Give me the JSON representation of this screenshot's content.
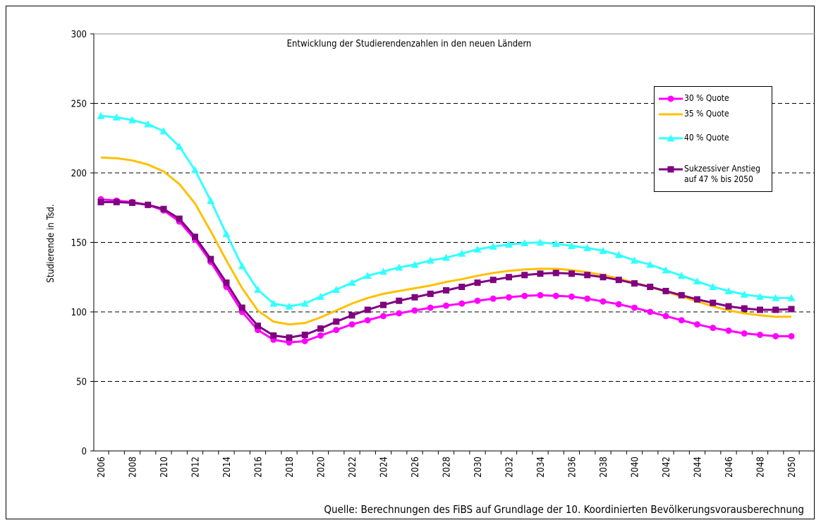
{
  "chart_data": {
    "type": "line",
    "title": "Entwicklung der Studierendenzahlen in den neuen Ländern",
    "y_label": "Studierende in Tsd.",
    "source": "Quelle: Berechnungen des FiBS auf Grundlage der 10. Koordinierten Bevölkerungsvorausberechnung",
    "categories": [
      "2006",
      null,
      "2008",
      null,
      "2010",
      null,
      "2012",
      null,
      "2014",
      null,
      "2016",
      null,
      "2018",
      null,
      "2020",
      null,
      "2022",
      null,
      "2024",
      null,
      "2026",
      null,
      "2028",
      null,
      "2030",
      null,
      "2032",
      null,
      "2034",
      null,
      "2036",
      null,
      "2038",
      null,
      "2040",
      null,
      "2042",
      null,
      "2044",
      null,
      "2046",
      null,
      "2048",
      null,
      "2050"
    ],
    "ylim": [
      0,
      300
    ],
    "yticks": [
      0,
      50,
      100,
      150,
      200,
      250,
      300
    ],
    "grid": true,
    "series": [
      {
        "name": "30 % Quote",
        "color": "#ff00ff",
        "marker": "circle",
        "values": [
          181,
          180,
          179,
          177,
          173,
          165,
          152,
          136,
          118,
          100,
          87,
          80,
          78,
          79,
          83,
          87,
          91,
          94,
          97,
          99,
          101,
          103,
          104.5,
          106,
          108,
          109.5,
          110.5,
          111.5,
          112,
          111.5,
          111,
          109.5,
          107.5,
          105.5,
          103,
          100,
          97,
          94,
          91,
          88.5,
          86.5,
          84.5,
          83.5,
          82.5,
          82.5
        ]
      },
      {
        "name": "35 % Quote",
        "color": "#ffc000",
        "marker": "none",
        "values": [
          211,
          210.5,
          209,
          206,
          201,
          192,
          178,
          158,
          137,
          117,
          101,
          93,
          91,
          92,
          96,
          101,
          106,
          110,
          113,
          115,
          117,
          119,
          121.5,
          123.5,
          126,
          128,
          129.5,
          130.5,
          131,
          131,
          130,
          128.5,
          126.5,
          124,
          121,
          118,
          114.5,
          111,
          107.5,
          104,
          101,
          99,
          97.5,
          96.5,
          96.5
        ]
      },
      {
        "name": "40 % Quote",
        "color": "#33ffff",
        "marker": "triangle",
        "values": [
          241,
          240,
          238,
          235,
          230,
          219,
          202,
          180,
          156,
          133,
          116,
          106,
          104,
          106,
          111,
          116,
          121,
          126,
          129,
          132,
          134,
          137,
          139,
          142,
          145,
          147,
          148.5,
          149.5,
          150,
          149,
          147.5,
          146,
          144,
          141,
          137,
          134,
          130,
          126,
          122,
          118,
          115,
          112.5,
          111,
          110,
          110
        ]
      },
      {
        "name": "Sukzessiver Anstieg auf 47 % bis 2050",
        "color": "#800080",
        "marker": "square",
        "values": [
          179,
          179,
          178.5,
          177,
          174,
          167,
          154,
          138,
          121,
          103,
          90,
          83,
          81.5,
          83.5,
          88,
          93,
          97.5,
          101.5,
          105,
          108,
          110.5,
          113,
          115.5,
          118,
          121,
          123,
          125,
          126.5,
          127.5,
          128,
          127.5,
          126.5,
          125,
          123,
          120.5,
          118,
          115,
          112,
          109,
          106.5,
          104,
          102.5,
          101.5,
          101.5,
          102
        ]
      }
    ]
  }
}
